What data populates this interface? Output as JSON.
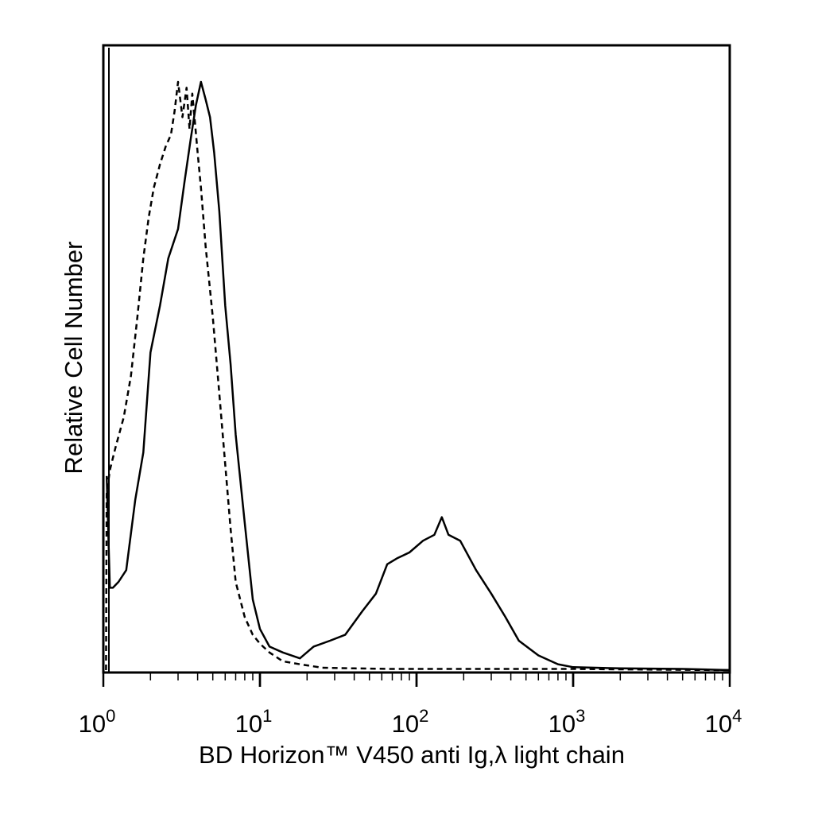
{
  "chart_data": {
    "type": "line",
    "title": "",
    "xlabel": "BD Horizon™ V450 anti Ig,λ  light chain",
    "ylabel": "Relative Cell Number",
    "xscale": "log",
    "xlim": [
      1,
      10000
    ],
    "ylim": [
      0,
      1
    ],
    "grid": false,
    "legend": "none",
    "x_ticks": [
      {
        "value": 1,
        "base": "10",
        "exp": "0"
      },
      {
        "value": 10,
        "base": "10",
        "exp": "1"
      },
      {
        "value": 100,
        "base": "10",
        "exp": "2"
      },
      {
        "value": 1000,
        "base": "10",
        "exp": "3"
      },
      {
        "value": 10000,
        "base": "10",
        "exp": "4"
      }
    ],
    "series": [
      {
        "style": "dashed",
        "color": "#000000",
        "x": [
          1.04,
          1.05,
          1.1,
          1.2,
          1.35,
          1.5,
          1.65,
          1.8,
          1.95,
          2.1,
          2.3,
          2.5,
          2.7,
          2.85,
          3.0,
          3.2,
          3.4,
          3.55,
          3.7,
          3.85,
          4.0,
          4.2,
          4.5,
          5.0,
          5.5,
          6.0,
          6.5,
          7.0,
          8.0,
          9.0,
          10.0,
          11.5,
          14.0,
          18.0,
          25.0,
          40.0,
          70.0,
          150.0,
          400.0,
          1000.0,
          3000.0,
          10000.0
        ],
        "y": [
          0.0,
          0.3,
          0.34,
          0.38,
          0.43,
          0.5,
          0.6,
          0.7,
          0.77,
          0.82,
          0.86,
          0.89,
          0.91,
          0.95,
          1.0,
          0.94,
          0.99,
          0.92,
          0.98,
          0.93,
          0.88,
          0.82,
          0.72,
          0.6,
          0.47,
          0.35,
          0.24,
          0.15,
          0.09,
          0.06,
          0.045,
          0.03,
          0.015,
          0.01,
          0.004,
          0.003,
          0.002,
          0.002,
          0.002,
          0.002,
          0.001,
          0.0
        ]
      },
      {
        "style": "solid",
        "color": "#000000",
        "x": [
          1.05,
          1.1,
          1.15,
          1.25,
          1.4,
          1.6,
          1.8,
          2.0,
          2.3,
          2.6,
          3.0,
          3.3,
          3.6,
          3.9,
          4.2,
          4.5,
          4.8,
          5.1,
          5.5,
          6.0,
          6.5,
          7.0,
          8.0,
          9.0,
          10.0,
          11.5,
          14.0,
          18.0,
          22.0,
          28.0,
          35.0,
          45.0,
          55.0,
          65.0,
          75.0,
          90.0,
          110.0,
          130.0,
          145.0,
          160.0,
          190.0,
          240.0,
          300.0,
          370.0,
          450.0,
          600.0,
          800.0,
          1000.0,
          2000.0,
          5000.0,
          10000.0
        ],
        "y": [
          0.33,
          0.14,
          0.14,
          0.15,
          0.17,
          0.29,
          0.37,
          0.54,
          0.62,
          0.7,
          0.75,
          0.83,
          0.9,
          0.96,
          1.0,
          0.97,
          0.94,
          0.88,
          0.78,
          0.62,
          0.52,
          0.4,
          0.25,
          0.12,
          0.07,
          0.04,
          0.03,
          0.02,
          0.04,
          0.05,
          0.06,
          0.1,
          0.13,
          0.18,
          0.19,
          0.2,
          0.22,
          0.23,
          0.26,
          0.23,
          0.22,
          0.17,
          0.13,
          0.09,
          0.05,
          0.025,
          0.01,
          0.005,
          0.003,
          0.002,
          0.0
        ]
      }
    ]
  }
}
